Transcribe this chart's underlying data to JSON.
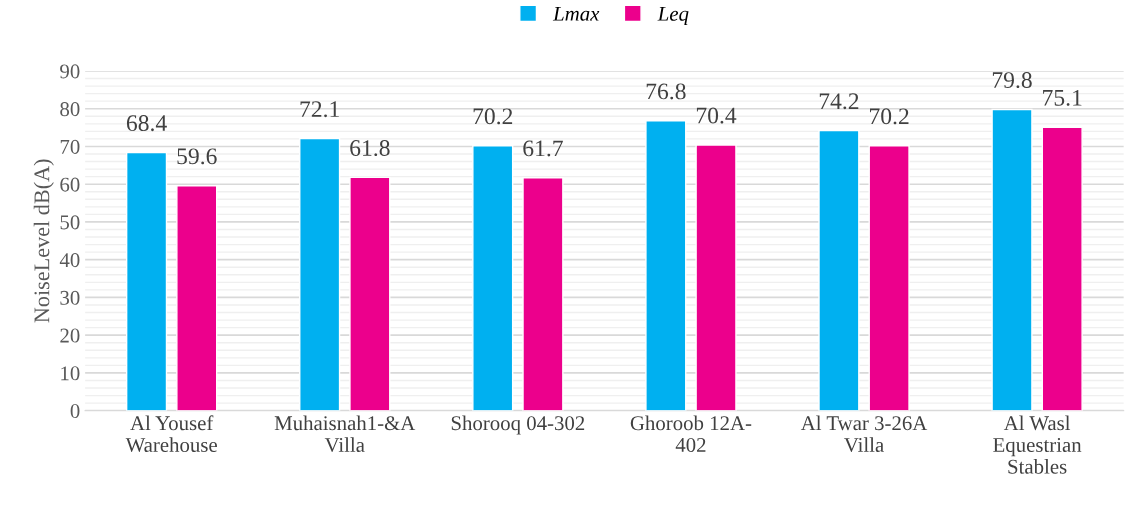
{
  "chart_data": {
    "type": "bar",
    "ylabel": "NoiseLevel dB(A)",
    "categories": [
      "Al Yousef\nWarehouse",
      "Muhaisnah1-&A\nVilla",
      "Shorooq 04-302",
      "Ghoroob 12A-\n402",
      "Al Twar 3-26A\nVilla",
      "Al Wasl\nEquestrian\nStables"
    ],
    "series": [
      {
        "name": "Lmax",
        "color": "#00b0f0",
        "values": [
          68.4,
          72.1,
          70.2,
          76.8,
          74.2,
          79.8
        ]
      },
      {
        "name": "Leq",
        "color": "#ec008c",
        "values": [
          59.6,
          61.8,
          61.7,
          70.4,
          70.2,
          75.1
        ]
      }
    ],
    "ylim": [
      0,
      90
    ],
    "yticks": [
      0,
      10,
      20,
      30,
      40,
      50,
      60,
      70,
      80,
      90
    ],
    "grid": "y",
    "legend": "top",
    "data_labels": true
  }
}
